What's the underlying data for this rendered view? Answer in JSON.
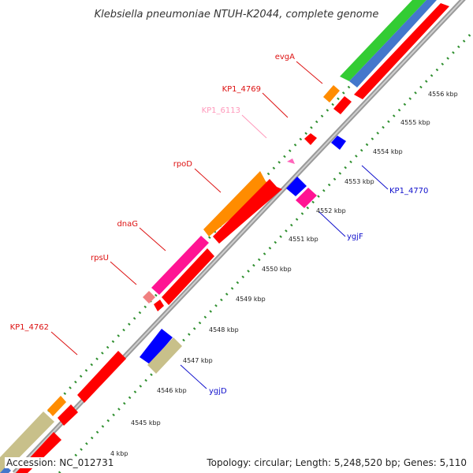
{
  "map": {
    "title": "Klebsiella pneumoniae NTUH-K2044, complete genome",
    "footer": {
      "accession": "Accession: NC_012731",
      "summary": "Topology: circular; Length: 5,248,520 bp; Genes: 5,110"
    },
    "colors": {
      "backbone": "#9a9a9a",
      "outer_ring_dots": "#2f8f2f",
      "forward_label": "#dd1111",
      "reverse_label": "#1111cc",
      "misc_label": "#ff99bb",
      "cds": "#ff0000",
      "gene_orange": "#ff8c00",
      "gene_magenta": "#ff1493",
      "gene_blue": "#0000ff",
      "gene_khaki": "#c8c08a",
      "gene_pink": "#f08080",
      "ring_green": "#33cc33",
      "ring_blue": "#4477cc"
    },
    "forward_genes": [
      {
        "name": "evgA"
      },
      {
        "name": "KP1_4769"
      },
      {
        "name": "rpoD"
      },
      {
        "name": "dnaG"
      },
      {
        "name": "rpsU"
      },
      {
        "name": "KP1_4762"
      }
    ],
    "misc_genes": [
      {
        "name": "KP1_6113"
      }
    ],
    "reverse_genes": [
      {
        "name": "KP1_4770"
      },
      {
        "name": "ygjF"
      },
      {
        "name": "ygjD"
      }
    ],
    "scale_ticks": [
      "4556 kbp",
      "4555 kbp",
      "4554 kbp",
      "4553 kbp",
      "4552 kbp",
      "4551 kbp",
      "4550 kbp",
      "4549 kbp",
      "4548 kbp",
      "4547 kbp",
      "4546 kbp",
      "4545 kbp",
      "4 kbp"
    ]
  }
}
